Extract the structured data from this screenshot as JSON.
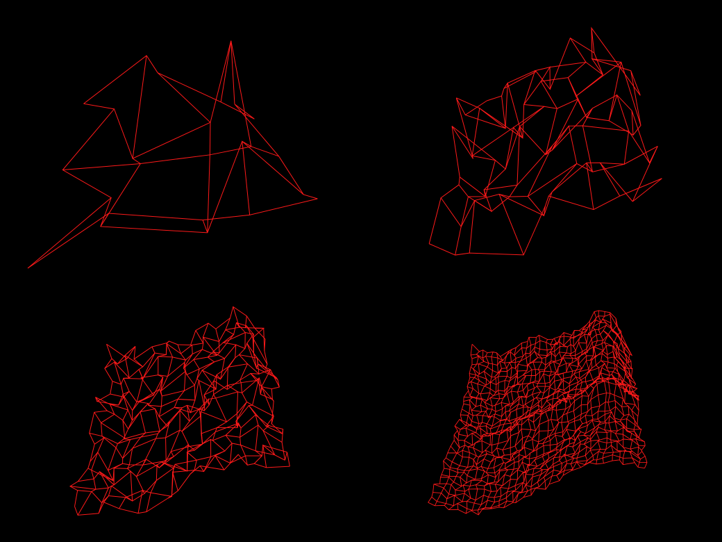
{
  "scene": {
    "background_color": "#000000",
    "wire_color": "#ff1a1a",
    "panels": [
      {
        "id": "coarse",
        "grid_divisions": 4,
        "smoothing_level": 0
      },
      {
        "id": "medium",
        "grid_divisions": 8,
        "smoothing_level": 1
      },
      {
        "id": "fine",
        "grid_divisions": 16,
        "smoothing_level": 2
      },
      {
        "id": "finest",
        "grid_divisions": 32,
        "smoothing_level": 3
      }
    ]
  }
}
